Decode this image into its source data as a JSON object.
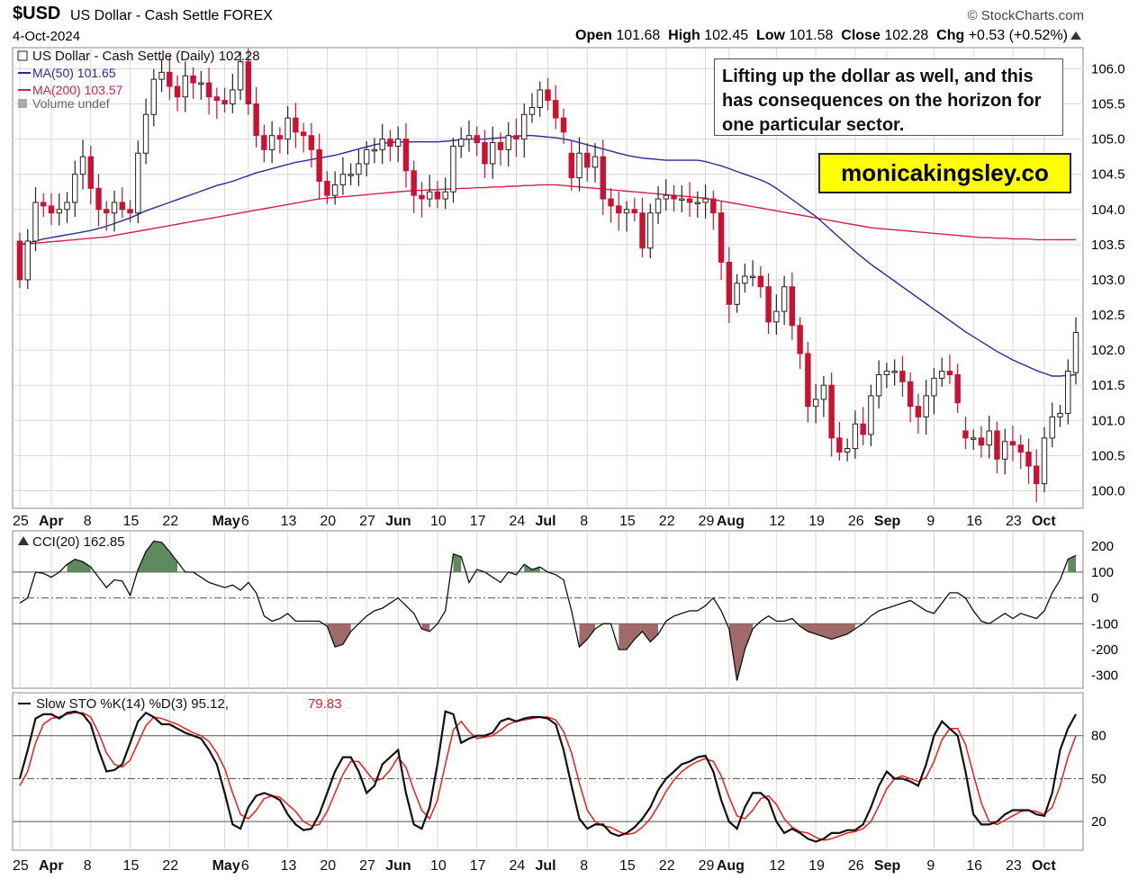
{
  "header": {
    "symbol": "$USD",
    "name": "US Dollar - Cash Settle FOREX",
    "date": "4-Oct-2024",
    "brand": "© StockCharts.com",
    "open_label": "Open",
    "open": "101.68",
    "high_label": "High",
    "high": "102.45",
    "low_label": "Low",
    "low": "101.58",
    "close_label": "Close",
    "close": "102.28",
    "chg_label": "Chg",
    "chg": "+0.53 (+0.52%)"
  },
  "annotation": {
    "note": "Lifting up the dollar as well, and this has consequences on the horizon for one particular sector.",
    "site": "monicakingsley.co"
  },
  "legend": {
    "price": "US Dollar - Cash Settle (Daily) 102.28",
    "ma50": "MA(50) 101.65",
    "ma200": "MA(200) 103.57",
    "volume": "Volume undef",
    "cci": "CCI(20) 162.85",
    "sto_prefix": "Slow STO %K(14) %D(3) 95.12,",
    "sto_d": "79.83"
  },
  "colors": {
    "up": "#ffffff",
    "down": "#cc1133",
    "ma50": "#2b2b99",
    "ma200": "#d42244",
    "cci_pos": "#5e8a5e",
    "cci_neg": "#a06a6a",
    "sto_d": "#ee1c1c",
    "grid": "#d8d8d8"
  },
  "x_axis": {
    "ticks": [
      {
        "label": "25",
        "bold": false,
        "i": 0
      },
      {
        "label": "Apr",
        "bold": true,
        "i": 4
      },
      {
        "label": "8",
        "bold": false,
        "i": 9
      },
      {
        "label": "15",
        "bold": false,
        "i": 14
      },
      {
        "label": "22",
        "bold": false,
        "i": 19
      },
      {
        "label": "May",
        "bold": true,
        "i": 26
      },
      {
        "label": "6",
        "bold": false,
        "i": 29
      },
      {
        "label": "13",
        "bold": false,
        "i": 34
      },
      {
        "label": "20",
        "bold": false,
        "i": 39
      },
      {
        "label": "27",
        "bold": false,
        "i": 44
      },
      {
        "label": "Jun",
        "bold": true,
        "i": 48
      },
      {
        "label": "10",
        "bold": false,
        "i": 53
      },
      {
        "label": "17",
        "bold": false,
        "i": 58
      },
      {
        "label": "24",
        "bold": false,
        "i": 63
      },
      {
        "label": "Jul",
        "bold": true,
        "i": 67
      },
      {
        "label": "8",
        "bold": false,
        "i": 72
      },
      {
        "label": "15",
        "bold": false,
        "i": 77
      },
      {
        "label": "22",
        "bold": false,
        "i": 82
      },
      {
        "label": "29",
        "bold": false,
        "i": 87
      },
      {
        "label": "Aug",
        "bold": true,
        "i": 90
      },
      {
        "label": "12",
        "bold": false,
        "i": 96
      },
      {
        "label": "19",
        "bold": false,
        "i": 101
      },
      {
        "label": "26",
        "bold": false,
        "i": 106
      },
      {
        "label": "Sep",
        "bold": true,
        "i": 110
      },
      {
        "label": "9",
        "bold": false,
        "i": 116
      },
      {
        "label": "16",
        "bold": false,
        "i": 121
      },
      {
        "label": "23",
        "bold": false,
        "i": 126
      },
      {
        "label": "Oct",
        "bold": true,
        "i": 130
      }
    ]
  },
  "chart_data": [
    {
      "type": "candlestick",
      "ylim": [
        99.75,
        106.3
      ],
      "yticks": [
        100.0,
        100.5,
        101.0,
        101.5,
        102.0,
        102.5,
        103.0,
        103.5,
        104.0,
        104.5,
        105.0,
        105.5,
        106.0
      ],
      "closes": [
        103.0,
        103.55,
        104.1,
        104.05,
        103.95,
        104.0,
        104.1,
        104.5,
        104.75,
        104.3,
        104.0,
        103.95,
        104.1,
        104.0,
        103.95,
        104.8,
        105.35,
        105.85,
        105.95,
        105.75,
        105.6,
        105.9,
        105.8,
        105.8,
        105.6,
        105.55,
        105.5,
        105.7,
        106.1,
        105.5,
        105.05,
        104.85,
        105.05,
        105.0,
        105.3,
        105.1,
        105.05,
        104.85,
        104.4,
        104.2,
        104.35,
        104.5,
        104.5,
        104.65,
        104.85,
        104.85,
        105.0,
        104.9,
        105.0,
        104.55,
        104.2,
        104.15,
        104.25,
        104.15,
        104.25,
        104.9,
        105.0,
        105.05,
        104.95,
        104.65,
        104.95,
        104.85,
        105.05,
        105.0,
        105.35,
        105.45,
        105.7,
        105.55,
        105.3,
        105.1,
        104.45,
        104.8,
        104.6,
        104.75,
        104.15,
        104.05,
        103.95,
        104.0,
        103.95,
        103.45,
        103.95,
        104.15,
        104.2,
        104.15,
        104.15,
        104.1,
        104.1,
        104.15,
        103.95,
        103.25,
        102.65,
        102.95,
        103.05,
        103.05,
        102.9,
        102.4,
        102.55,
        102.9,
        102.35,
        101.95,
        101.2,
        101.3,
        101.5,
        100.75,
        100.55,
        100.6,
        100.95,
        100.8,
        101.35,
        101.65,
        101.7,
        101.7,
        101.55,
        101.2,
        101.05,
        101.35,
        101.6,
        101.7,
        101.65,
        101.25,
        100.75,
        100.75,
        100.65,
        100.85,
        100.45,
        100.7,
        100.65,
        100.55,
        100.35,
        100.1,
        100.75,
        101.05,
        101.1,
        101.7,
        102.25
      ],
      "opens": [
        103.55,
        103.0,
        103.55,
        104.1,
        104.05,
        103.95,
        104.0,
        104.1,
        104.5,
        104.75,
        104.3,
        104.0,
        103.95,
        104.1,
        104.0,
        103.95,
        104.8,
        105.35,
        105.85,
        105.95,
        105.75,
        105.6,
        105.9,
        105.8,
        105.8,
        105.6,
        105.55,
        105.5,
        105.7,
        106.1,
        105.5,
        105.05,
        104.85,
        105.05,
        105.0,
        105.3,
        105.1,
        105.05,
        104.85,
        104.4,
        104.2,
        104.35,
        104.5,
        104.5,
        104.65,
        104.85,
        104.85,
        105.0,
        104.9,
        105.0,
        104.55,
        104.2,
        104.15,
        104.25,
        104.15,
        104.25,
        104.9,
        105.0,
        105.05,
        104.95,
        104.65,
        104.95,
        104.85,
        105.05,
        105.0,
        105.35,
        105.45,
        105.7,
        105.55,
        105.3,
        104.8,
        104.45,
        104.8,
        104.6,
        104.75,
        104.15,
        104.05,
        103.95,
        104.0,
        103.95,
        103.45,
        103.95,
        104.15,
        104.2,
        104.15,
        104.15,
        104.1,
        104.1,
        104.15,
        103.95,
        103.25,
        102.65,
        102.95,
        103.05,
        103.05,
        102.9,
        102.4,
        102.55,
        102.9,
        102.35,
        101.95,
        101.2,
        101.3,
        101.5,
        100.75,
        100.55,
        100.6,
        100.95,
        100.8,
        101.35,
        101.65,
        101.7,
        101.7,
        101.55,
        101.2,
        101.05,
        101.35,
        101.6,
        101.7,
        101.65,
        100.85,
        100.75,
        100.75,
        100.65,
        100.85,
        100.45,
        100.7,
        100.65,
        100.55,
        100.35,
        100.1,
        100.75,
        101.05,
        101.1,
        101.68
      ],
      "ma50": [
        103.5,
        103.52,
        103.55,
        103.58,
        103.6,
        103.62,
        103.64,
        103.66,
        103.68,
        103.7,
        103.73,
        103.76,
        103.8,
        103.84,
        103.88,
        103.93,
        103.98,
        104.02,
        104.06,
        104.1,
        104.14,
        104.18,
        104.22,
        104.26,
        104.3,
        104.34,
        104.37,
        104.4,
        104.44,
        104.48,
        104.52,
        104.55,
        104.58,
        104.61,
        104.64,
        104.67,
        104.69,
        104.71,
        104.73,
        104.75,
        104.77,
        104.8,
        104.83,
        104.86,
        104.89,
        104.92,
        104.94,
        104.95,
        104.96,
        104.96,
        104.96,
        104.96,
        104.96,
        104.96,
        104.97,
        104.98,
        104.99,
        105.0,
        105.0,
        105.0,
        105.01,
        105.02,
        105.03,
        105.04,
        105.05,
        105.05,
        105.04,
        105.03,
        105.02,
        105.0,
        104.98,
        104.95,
        104.92,
        104.89,
        104.86,
        104.83,
        104.8,
        104.77,
        104.75,
        104.73,
        104.72,
        104.71,
        104.7,
        104.7,
        104.7,
        104.7,
        104.7,
        104.68,
        104.65,
        104.62,
        104.58,
        104.54,
        104.5,
        104.46,
        104.42,
        104.37,
        104.3,
        104.22,
        104.14,
        104.06,
        103.98,
        103.9,
        103.8,
        103.7,
        103.6,
        103.5,
        103.4,
        103.31,
        103.22,
        103.14,
        103.06,
        102.98,
        102.9,
        102.82,
        102.74,
        102.66,
        102.58,
        102.5,
        102.42,
        102.34,
        102.26,
        102.19,
        102.12,
        102.05,
        101.98,
        101.92,
        101.86,
        101.81,
        101.76,
        101.71,
        101.67,
        101.63,
        101.63,
        101.64,
        101.65
      ],
      "ma200": [
        103.5,
        103.51,
        103.52,
        103.53,
        103.54,
        103.55,
        103.56,
        103.57,
        103.58,
        103.59,
        103.6,
        103.61,
        103.63,
        103.65,
        103.67,
        103.69,
        103.71,
        103.73,
        103.75,
        103.77,
        103.79,
        103.81,
        103.83,
        103.85,
        103.87,
        103.89,
        103.91,
        103.93,
        103.95,
        103.97,
        103.99,
        104.01,
        104.03,
        104.05,
        104.07,
        104.09,
        104.11,
        104.13,
        104.15,
        104.16,
        104.17,
        104.18,
        104.19,
        104.2,
        104.21,
        104.22,
        104.23,
        104.24,
        104.25,
        104.26,
        104.27,
        104.27,
        104.28,
        104.28,
        104.29,
        104.29,
        104.3,
        104.3,
        104.31,
        104.31,
        104.32,
        104.32,
        104.33,
        104.33,
        104.34,
        104.34,
        104.35,
        104.35,
        104.35,
        104.34,
        104.33,
        104.32,
        104.31,
        104.3,
        104.29,
        104.28,
        104.27,
        104.26,
        104.25,
        104.24,
        104.23,
        104.22,
        104.21,
        104.2,
        104.19,
        104.18,
        104.17,
        104.16,
        104.14,
        104.12,
        104.1,
        104.08,
        104.06,
        104.04,
        104.02,
        104.0,
        103.98,
        103.96,
        103.94,
        103.92,
        103.9,
        103.88,
        103.86,
        103.84,
        103.82,
        103.8,
        103.78,
        103.76,
        103.74,
        103.73,
        103.72,
        103.71,
        103.7,
        103.69,
        103.68,
        103.67,
        103.66,
        103.65,
        103.64,
        103.63,
        103.62,
        103.61,
        103.6,
        103.6,
        103.59,
        103.59,
        103.58,
        103.58,
        103.58,
        103.57,
        103.57,
        103.57,
        103.57,
        103.57,
        103.57
      ]
    },
    {
      "type": "area",
      "name": "CCI(20)",
      "ylim": [
        -350,
        260
      ],
      "yticks": [
        200,
        100,
        0,
        -100,
        -200,
        -300
      ],
      "values": [
        -20,
        0,
        100,
        95,
        80,
        100,
        130,
        150,
        140,
        120,
        80,
        40,
        70,
        65,
        10,
        110,
        180,
        220,
        215,
        180,
        140,
        100,
        100,
        80,
        60,
        50,
        40,
        50,
        30,
        60,
        20,
        -70,
        -90,
        -80,
        -60,
        -90,
        -90,
        -90,
        -90,
        -110,
        -190,
        -180,
        -130,
        -100,
        -70,
        -50,
        -40,
        -20,
        0,
        -30,
        -60,
        -120,
        -130,
        -100,
        -50,
        170,
        160,
        60,
        110,
        100,
        80,
        60,
        100,
        90,
        130,
        110,
        120,
        100,
        90,
        70,
        -50,
        -190,
        -160,
        -120,
        -100,
        -100,
        -200,
        -200,
        -160,
        -130,
        -170,
        -140,
        -90,
        -70,
        -60,
        -50,
        -50,
        -30,
        0,
        -50,
        -120,
        -320,
        -200,
        -120,
        -90,
        -70,
        -90,
        -90,
        -80,
        -110,
        -130,
        -140,
        -150,
        -160,
        -150,
        -140,
        -120,
        -100,
        -70,
        -50,
        -40,
        -30,
        -20,
        -10,
        -30,
        -50,
        -60,
        -20,
        20,
        20,
        0,
        -50,
        -90,
        -100,
        -80,
        -60,
        -80,
        -60,
        -70,
        -80,
        -50,
        20,
        70,
        150,
        165
      ],
      "series_colors": {
        "positive": "#5e8a5e",
        "negative": "#a06a6a"
      }
    },
    {
      "type": "line",
      "name": "Slow STO %K(14) %D(3)",
      "ylim": [
        0,
        110
      ],
      "yticks": [
        80,
        50,
        20
      ],
      "series": [
        {
          "name": "%K",
          "values": [
            50,
            70,
            92,
            95,
            95,
            92,
            96,
            97,
            95,
            88,
            70,
            55,
            56,
            60,
            75,
            90,
            96,
            93,
            88,
            88,
            85,
            82,
            80,
            78,
            70,
            60,
            40,
            18,
            15,
            30,
            38,
            40,
            38,
            35,
            25,
            18,
            14,
            15,
            25,
            40,
            55,
            65,
            65,
            55,
            40,
            45,
            60,
            65,
            70,
            40,
            18,
            15,
            30,
            60,
            97,
            95,
            75,
            78,
            80,
            80,
            82,
            90,
            92,
            90,
            92,
            93,
            93,
            92,
            88,
            70,
            45,
            22,
            15,
            18,
            18,
            12,
            10,
            12,
            16,
            22,
            30,
            42,
            50,
            55,
            60,
            62,
            65,
            66,
            55,
            35,
            20,
            15,
            30,
            40,
            40,
            35,
            20,
            12,
            15,
            12,
            8,
            6,
            8,
            12,
            12,
            14,
            14,
            18,
            30,
            45,
            55,
            50,
            50,
            48,
            45,
            60,
            80,
            90,
            85,
            80,
            55,
            25,
            18,
            18,
            20,
            25,
            28,
            28,
            28,
            25,
            24,
            40,
            70,
            85,
            95
          ]
        },
        {
          "name": "%D",
          "values": [
            45,
            55,
            75,
            88,
            92,
            93,
            95,
            96,
            96,
            93,
            82,
            68,
            60,
            58,
            63,
            75,
            87,
            93,
            92,
            90,
            88,
            85,
            82,
            80,
            76,
            68,
            57,
            40,
            25,
            22,
            28,
            36,
            38,
            37,
            32,
            27,
            20,
            17,
            18,
            27,
            40,
            53,
            62,
            62,
            55,
            48,
            50,
            56,
            65,
            58,
            42,
            28,
            22,
            35,
            60,
            84,
            90,
            83,
            78,
            79,
            80,
            84,
            88,
            90,
            91,
            92,
            93,
            93,
            91,
            83,
            68,
            47,
            28,
            20,
            17,
            16,
            13,
            11,
            12,
            16,
            22,
            31,
            41,
            49,
            55,
            59,
            62,
            64,
            62,
            52,
            37,
            24,
            22,
            28,
            36,
            38,
            32,
            22,
            16,
            13,
            12,
            9,
            7,
            8,
            10,
            12,
            13,
            15,
            20,
            31,
            43,
            50,
            52,
            50,
            48,
            51,
            62,
            77,
            85,
            85,
            74,
            53,
            33,
            20,
            18,
            21,
            24,
            27,
            28,
            27,
            25,
            30,
            45,
            65,
            80
          ]
        }
      ]
    }
  ]
}
